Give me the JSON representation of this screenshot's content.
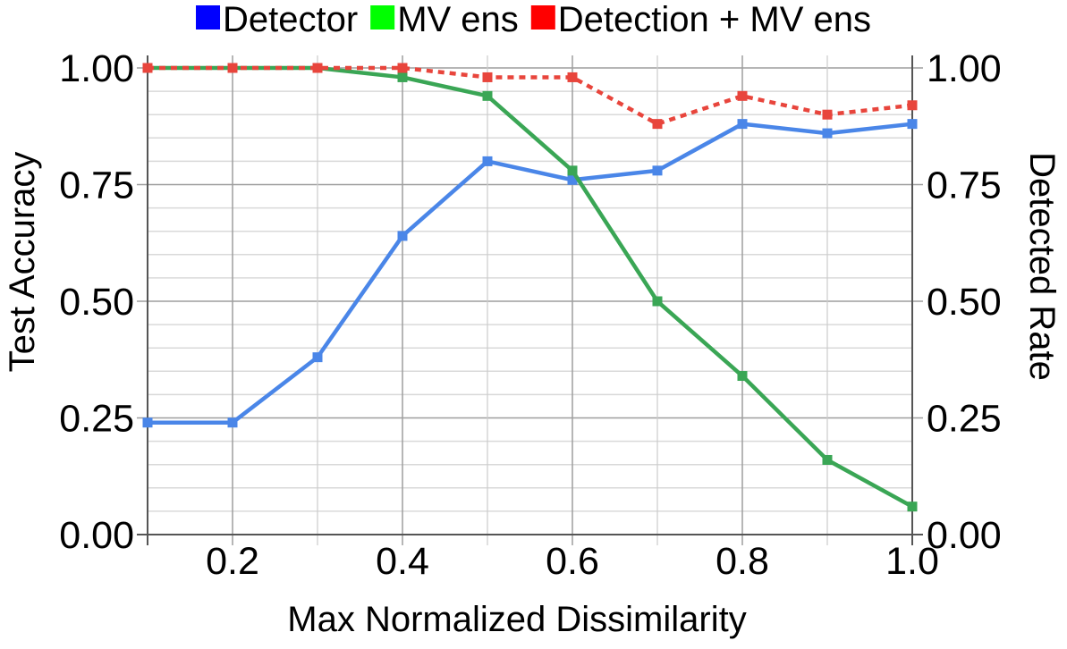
{
  "chart_data": {
    "type": "line",
    "x": [
      0.1,
      0.2,
      0.3,
      0.4,
      0.5,
      0.6,
      0.7,
      0.8,
      0.9,
      1.0
    ],
    "series": [
      {
        "name": "Detector",
        "color": "#4a86e8",
        "legend_color": "#0000ff",
        "line_style": "solid",
        "values": [
          0.24,
          0.24,
          0.38,
          0.64,
          0.8,
          0.76,
          0.78,
          0.88,
          0.86,
          0.88
        ]
      },
      {
        "name": "MV ens",
        "color": "#3aa655",
        "legend_color": "#00ff00",
        "line_style": "solid",
        "values": [
          1.0,
          1.0,
          1.0,
          0.98,
          0.94,
          0.78,
          0.5,
          0.34,
          0.16,
          0.06
        ]
      },
      {
        "name": "Detection + MV ens",
        "color": "#e8453c",
        "legend_color": "#ff0000",
        "line_style": "dotted",
        "values": [
          1.0,
          1.0,
          1.0,
          1.0,
          0.98,
          0.98,
          0.88,
          0.94,
          0.9,
          0.92
        ]
      }
    ],
    "xlabel": "Max Normalized Dissimilarity",
    "ylabel": "Test Accuracy",
    "ylabel_right": "Detected Rate",
    "xlim": [
      0.1,
      1.0
    ],
    "ylim": [
      0,
      1.0
    ],
    "x_ticks": [
      0.2,
      0.4,
      0.6,
      0.8,
      1.0
    ],
    "x_tick_labels": [
      "0.2",
      "0.4",
      "0.6",
      "0.8",
      "1.0"
    ],
    "y_ticks": [
      0,
      0.25,
      0.5,
      0.75,
      1.0
    ],
    "y_tick_labels": [
      "0.00",
      "0.25",
      "0.50",
      "0.75",
      "1.00"
    ],
    "y_tick_labels_right": [
      "0.00",
      "0.25",
      "0.50",
      "0.75",
      "1.00"
    ],
    "grid": true,
    "legend_position": "top"
  }
}
